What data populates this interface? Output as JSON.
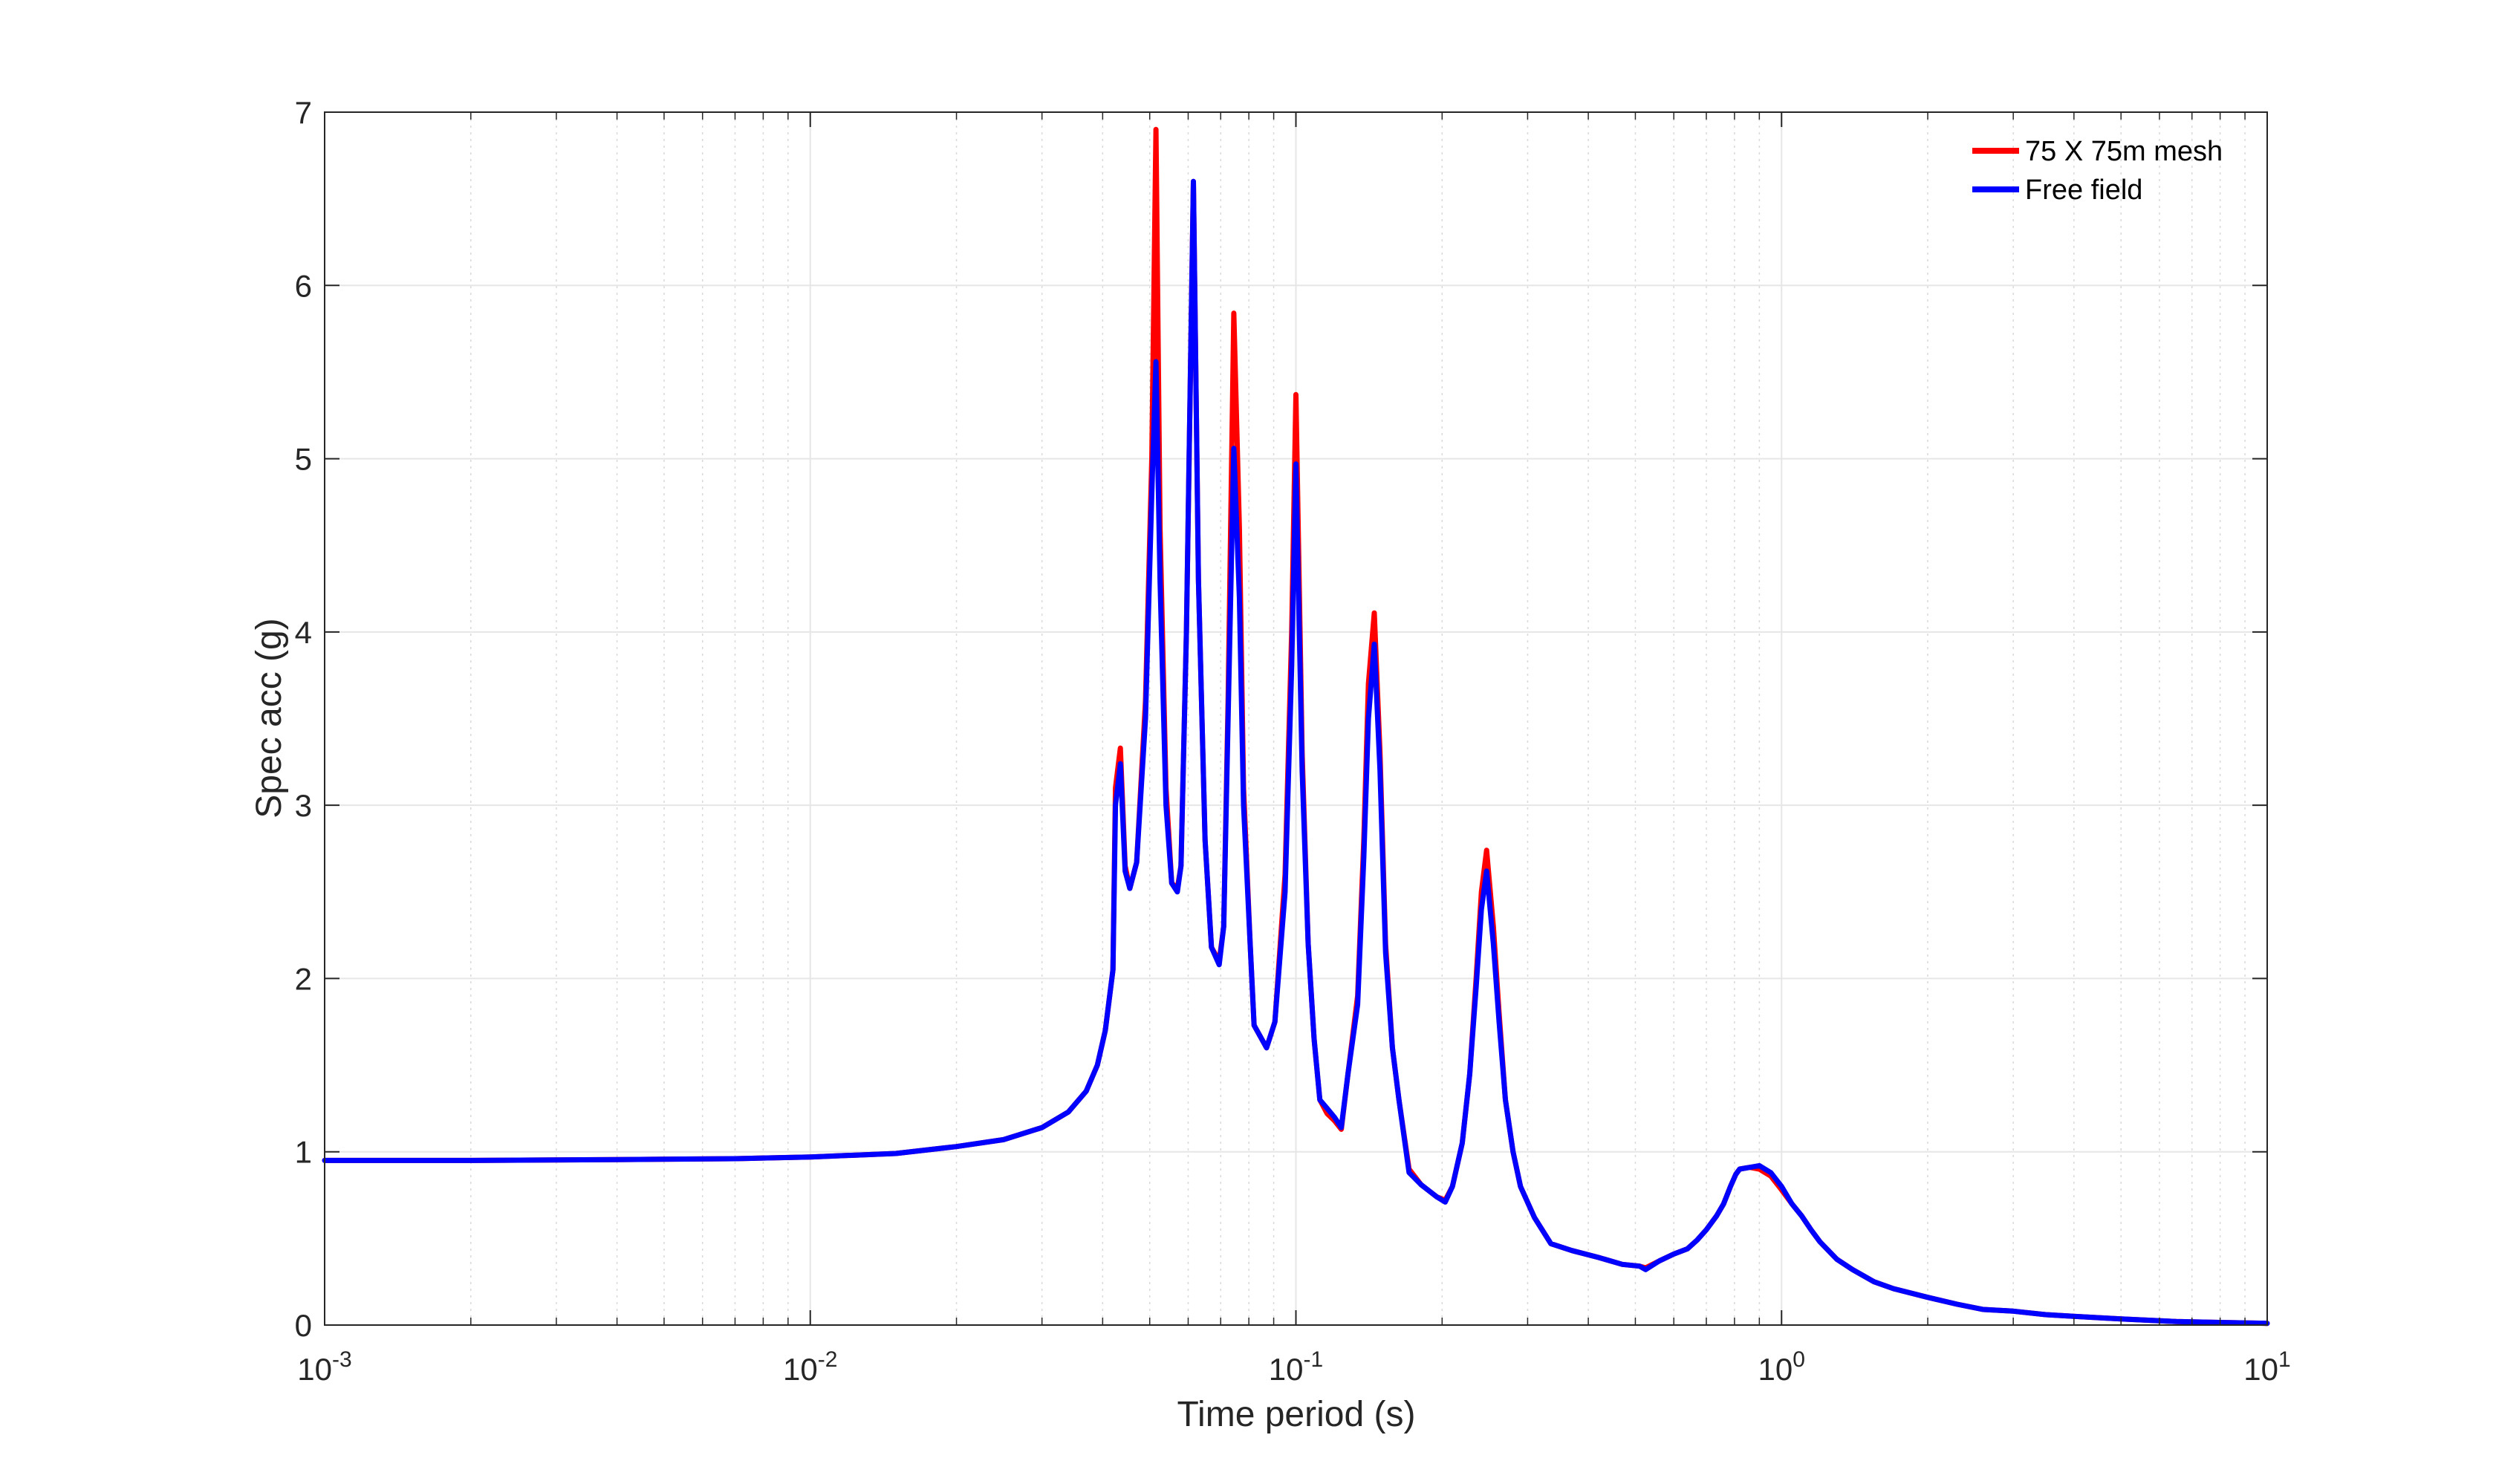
{
  "chart_data": {
    "type": "line",
    "xlabel": "Time period (s)",
    "ylabel": "Spec acc (g)",
    "xscale": "log",
    "xlim": [
      0.001,
      10
    ],
    "ylim": [
      0,
      7
    ],
    "xticks": [
      {
        "value": 0.001,
        "base": "10",
        "exp": "-3"
      },
      {
        "value": 0.01,
        "base": "10",
        "exp": "-2"
      },
      {
        "value": 0.1,
        "base": "10",
        "exp": "-1"
      },
      {
        "value": 1,
        "base": "10",
        "exp": "0"
      },
      {
        "value": 10,
        "base": "10",
        "exp": "1"
      }
    ],
    "yticks": [
      0,
      1,
      2,
      3,
      4,
      5,
      6,
      7
    ],
    "grid": true,
    "legend_position": "top-right",
    "series": [
      {
        "name": "75 X 75m mesh",
        "color": "#ff0000",
        "points": [
          [
            0.001,
            0.95
          ],
          [
            0.002,
            0.95
          ],
          [
            0.004,
            0.955
          ],
          [
            0.007,
            0.96
          ],
          [
            0.01,
            0.97
          ],
          [
            0.015,
            0.99
          ],
          [
            0.02,
            1.03
          ],
          [
            0.025,
            1.07
          ],
          [
            0.03,
            1.14
          ],
          [
            0.034,
            1.23
          ],
          [
            0.037,
            1.35
          ],
          [
            0.039,
            1.5
          ],
          [
            0.0405,
            1.7
          ],
          [
            0.042,
            2.05
          ],
          [
            0.0425,
            3.1
          ],
          [
            0.0435,
            3.33
          ],
          [
            0.0445,
            2.65
          ],
          [
            0.0455,
            2.52
          ],
          [
            0.047,
            2.67
          ],
          [
            0.049,
            3.6
          ],
          [
            0.0505,
            5.0
          ],
          [
            0.0515,
            6.9
          ],
          [
            0.0525,
            4.6
          ],
          [
            0.054,
            3.1
          ],
          [
            0.0555,
            2.55
          ],
          [
            0.057,
            2.52
          ],
          [
            0.058,
            2.65
          ],
          [
            0.0595,
            4.0
          ],
          [
            0.0615,
            6.6
          ],
          [
            0.063,
            4.3
          ],
          [
            0.065,
            2.8
          ],
          [
            0.067,
            2.18
          ],
          [
            0.0695,
            2.1
          ],
          [
            0.071,
            2.3
          ],
          [
            0.0725,
            3.6
          ],
          [
            0.0745,
            5.84
          ],
          [
            0.0765,
            4.6
          ],
          [
            0.078,
            3.1
          ],
          [
            0.0805,
            2.2
          ],
          [
            0.082,
            1.73
          ],
          [
            0.087,
            1.6
          ],
          [
            0.0905,
            1.75
          ],
          [
            0.095,
            2.6
          ],
          [
            0.098,
            4.0
          ],
          [
            0.1,
            5.37
          ],
          [
            0.103,
            3.3
          ],
          [
            0.106,
            2.2
          ],
          [
            0.109,
            1.65
          ],
          [
            0.112,
            1.3
          ],
          [
            0.116,
            1.22
          ],
          [
            0.12,
            1.18
          ],
          [
            0.124,
            1.13
          ],
          [
            0.128,
            1.45
          ],
          [
            0.134,
            1.9
          ],
          [
            0.138,
            2.8
          ],
          [
            0.141,
            3.7
          ],
          [
            0.145,
            4.11
          ],
          [
            0.149,
            3.3
          ],
          [
            0.153,
            2.2
          ],
          [
            0.158,
            1.6
          ],
          [
            0.163,
            1.3
          ],
          [
            0.171,
            0.9
          ],
          [
            0.181,
            0.81
          ],
          [
            0.195,
            0.74
          ],
          [
            0.203,
            0.72
          ],
          [
            0.21,
            0.8
          ],
          [
            0.22,
            1.05
          ],
          [
            0.228,
            1.45
          ],
          [
            0.235,
            2.0
          ],
          [
            0.241,
            2.5
          ],
          [
            0.247,
            2.74
          ],
          [
            0.255,
            2.3
          ],
          [
            0.262,
            1.8
          ],
          [
            0.27,
            1.3
          ],
          [
            0.28,
            1.0
          ],
          [
            0.29,
            0.8
          ],
          [
            0.31,
            0.62
          ],
          [
            0.335,
            0.47
          ],
          [
            0.37,
            0.43
          ],
          [
            0.42,
            0.39
          ],
          [
            0.47,
            0.35
          ],
          [
            0.51,
            0.34
          ],
          [
            0.525,
            0.33
          ],
          [
            0.56,
            0.37
          ],
          [
            0.6,
            0.41
          ],
          [
            0.64,
            0.44
          ],
          [
            0.67,
            0.49
          ],
          [
            0.7,
            0.55
          ],
          [
            0.735,
            0.63
          ],
          [
            0.76,
            0.7
          ],
          [
            0.785,
            0.8
          ],
          [
            0.805,
            0.87
          ],
          [
            0.82,
            0.9
          ],
          [
            0.86,
            0.91
          ],
          [
            0.9,
            0.9
          ],
          [
            0.95,
            0.86
          ],
          [
            1.0,
            0.78
          ],
          [
            1.05,
            0.7
          ],
          [
            1.1,
            0.63
          ],
          [
            1.15,
            0.55
          ],
          [
            1.2,
            0.48
          ],
          [
            1.3,
            0.38
          ],
          [
            1.4,
            0.32
          ],
          [
            1.55,
            0.25
          ],
          [
            1.7,
            0.21
          ],
          [
            2.0,
            0.16
          ],
          [
            2.3,
            0.12
          ],
          [
            2.6,
            0.09
          ],
          [
            3.0,
            0.08
          ],
          [
            3.5,
            0.06
          ],
          [
            4.0,
            0.05
          ],
          [
            5.0,
            0.035
          ],
          [
            6.5,
            0.02
          ],
          [
            8.0,
            0.015
          ],
          [
            10,
            0.01
          ]
        ]
      },
      {
        "name": "Free field",
        "color": "#0000ff",
        "points": [
          [
            0.001,
            0.95
          ],
          [
            0.002,
            0.95
          ],
          [
            0.004,
            0.955
          ],
          [
            0.007,
            0.96
          ],
          [
            0.01,
            0.97
          ],
          [
            0.015,
            0.99
          ],
          [
            0.02,
            1.03
          ],
          [
            0.025,
            1.07
          ],
          [
            0.03,
            1.14
          ],
          [
            0.034,
            1.23
          ],
          [
            0.037,
            1.35
          ],
          [
            0.039,
            1.5
          ],
          [
            0.0405,
            1.7
          ],
          [
            0.042,
            2.05
          ],
          [
            0.0425,
            3.0
          ],
          [
            0.0435,
            3.24
          ],
          [
            0.0445,
            2.62
          ],
          [
            0.0455,
            2.52
          ],
          [
            0.047,
            2.67
          ],
          [
            0.049,
            3.5
          ],
          [
            0.0505,
            4.8
          ],
          [
            0.0515,
            5.56
          ],
          [
            0.0525,
            4.3
          ],
          [
            0.054,
            3.0
          ],
          [
            0.0555,
            2.55
          ],
          [
            0.057,
            2.5
          ],
          [
            0.058,
            2.65
          ],
          [
            0.0595,
            4.0
          ],
          [
            0.0615,
            6.6
          ],
          [
            0.063,
            4.3
          ],
          [
            0.065,
            2.8
          ],
          [
            0.067,
            2.18
          ],
          [
            0.0695,
            2.08
          ],
          [
            0.071,
            2.3
          ],
          [
            0.0725,
            3.5
          ],
          [
            0.0745,
            5.06
          ],
          [
            0.0765,
            4.2
          ],
          [
            0.078,
            3.0
          ],
          [
            0.0805,
            2.2
          ],
          [
            0.082,
            1.73
          ],
          [
            0.087,
            1.6
          ],
          [
            0.0905,
            1.75
          ],
          [
            0.095,
            2.5
          ],
          [
            0.098,
            3.8
          ],
          [
            0.1,
            4.97
          ],
          [
            0.103,
            3.2
          ],
          [
            0.106,
            2.2
          ],
          [
            0.109,
            1.65
          ],
          [
            0.112,
            1.3
          ],
          [
            0.116,
            1.25
          ],
          [
            0.12,
            1.2
          ],
          [
            0.124,
            1.14
          ],
          [
            0.128,
            1.45
          ],
          [
            0.134,
            1.85
          ],
          [
            0.138,
            2.7
          ],
          [
            0.141,
            3.5
          ],
          [
            0.145,
            3.93
          ],
          [
            0.149,
            3.2
          ],
          [
            0.153,
            2.15
          ],
          [
            0.158,
            1.6
          ],
          [
            0.163,
            1.3
          ],
          [
            0.171,
            0.88
          ],
          [
            0.181,
            0.81
          ],
          [
            0.195,
            0.74
          ],
          [
            0.203,
            0.71
          ],
          [
            0.21,
            0.8
          ],
          [
            0.22,
            1.05
          ],
          [
            0.228,
            1.45
          ],
          [
            0.235,
            1.95
          ],
          [
            0.241,
            2.4
          ],
          [
            0.247,
            2.62
          ],
          [
            0.255,
            2.2
          ],
          [
            0.262,
            1.75
          ],
          [
            0.27,
            1.3
          ],
          [
            0.28,
            1.0
          ],
          [
            0.29,
            0.8
          ],
          [
            0.31,
            0.62
          ],
          [
            0.335,
            0.47
          ],
          [
            0.37,
            0.43
          ],
          [
            0.42,
            0.39
          ],
          [
            0.47,
            0.35
          ],
          [
            0.51,
            0.34
          ],
          [
            0.525,
            0.32
          ],
          [
            0.56,
            0.37
          ],
          [
            0.6,
            0.41
          ],
          [
            0.64,
            0.44
          ],
          [
            0.67,
            0.49
          ],
          [
            0.7,
            0.55
          ],
          [
            0.735,
            0.63
          ],
          [
            0.76,
            0.7
          ],
          [
            0.785,
            0.8
          ],
          [
            0.805,
            0.87
          ],
          [
            0.82,
            0.9
          ],
          [
            0.86,
            0.91
          ],
          [
            0.9,
            0.92
          ],
          [
            0.95,
            0.88
          ],
          [
            1.0,
            0.8
          ],
          [
            1.05,
            0.7
          ],
          [
            1.1,
            0.63
          ],
          [
            1.15,
            0.55
          ],
          [
            1.2,
            0.48
          ],
          [
            1.3,
            0.38
          ],
          [
            1.4,
            0.32
          ],
          [
            1.55,
            0.25
          ],
          [
            1.7,
            0.21
          ],
          [
            2.0,
            0.16
          ],
          [
            2.3,
            0.12
          ],
          [
            2.6,
            0.09
          ],
          [
            3.0,
            0.08
          ],
          [
            3.5,
            0.06
          ],
          [
            4.0,
            0.05
          ],
          [
            5.0,
            0.035
          ],
          [
            6.5,
            0.02
          ],
          [
            8.0,
            0.015
          ],
          [
            10,
            0.01
          ]
        ]
      }
    ]
  }
}
